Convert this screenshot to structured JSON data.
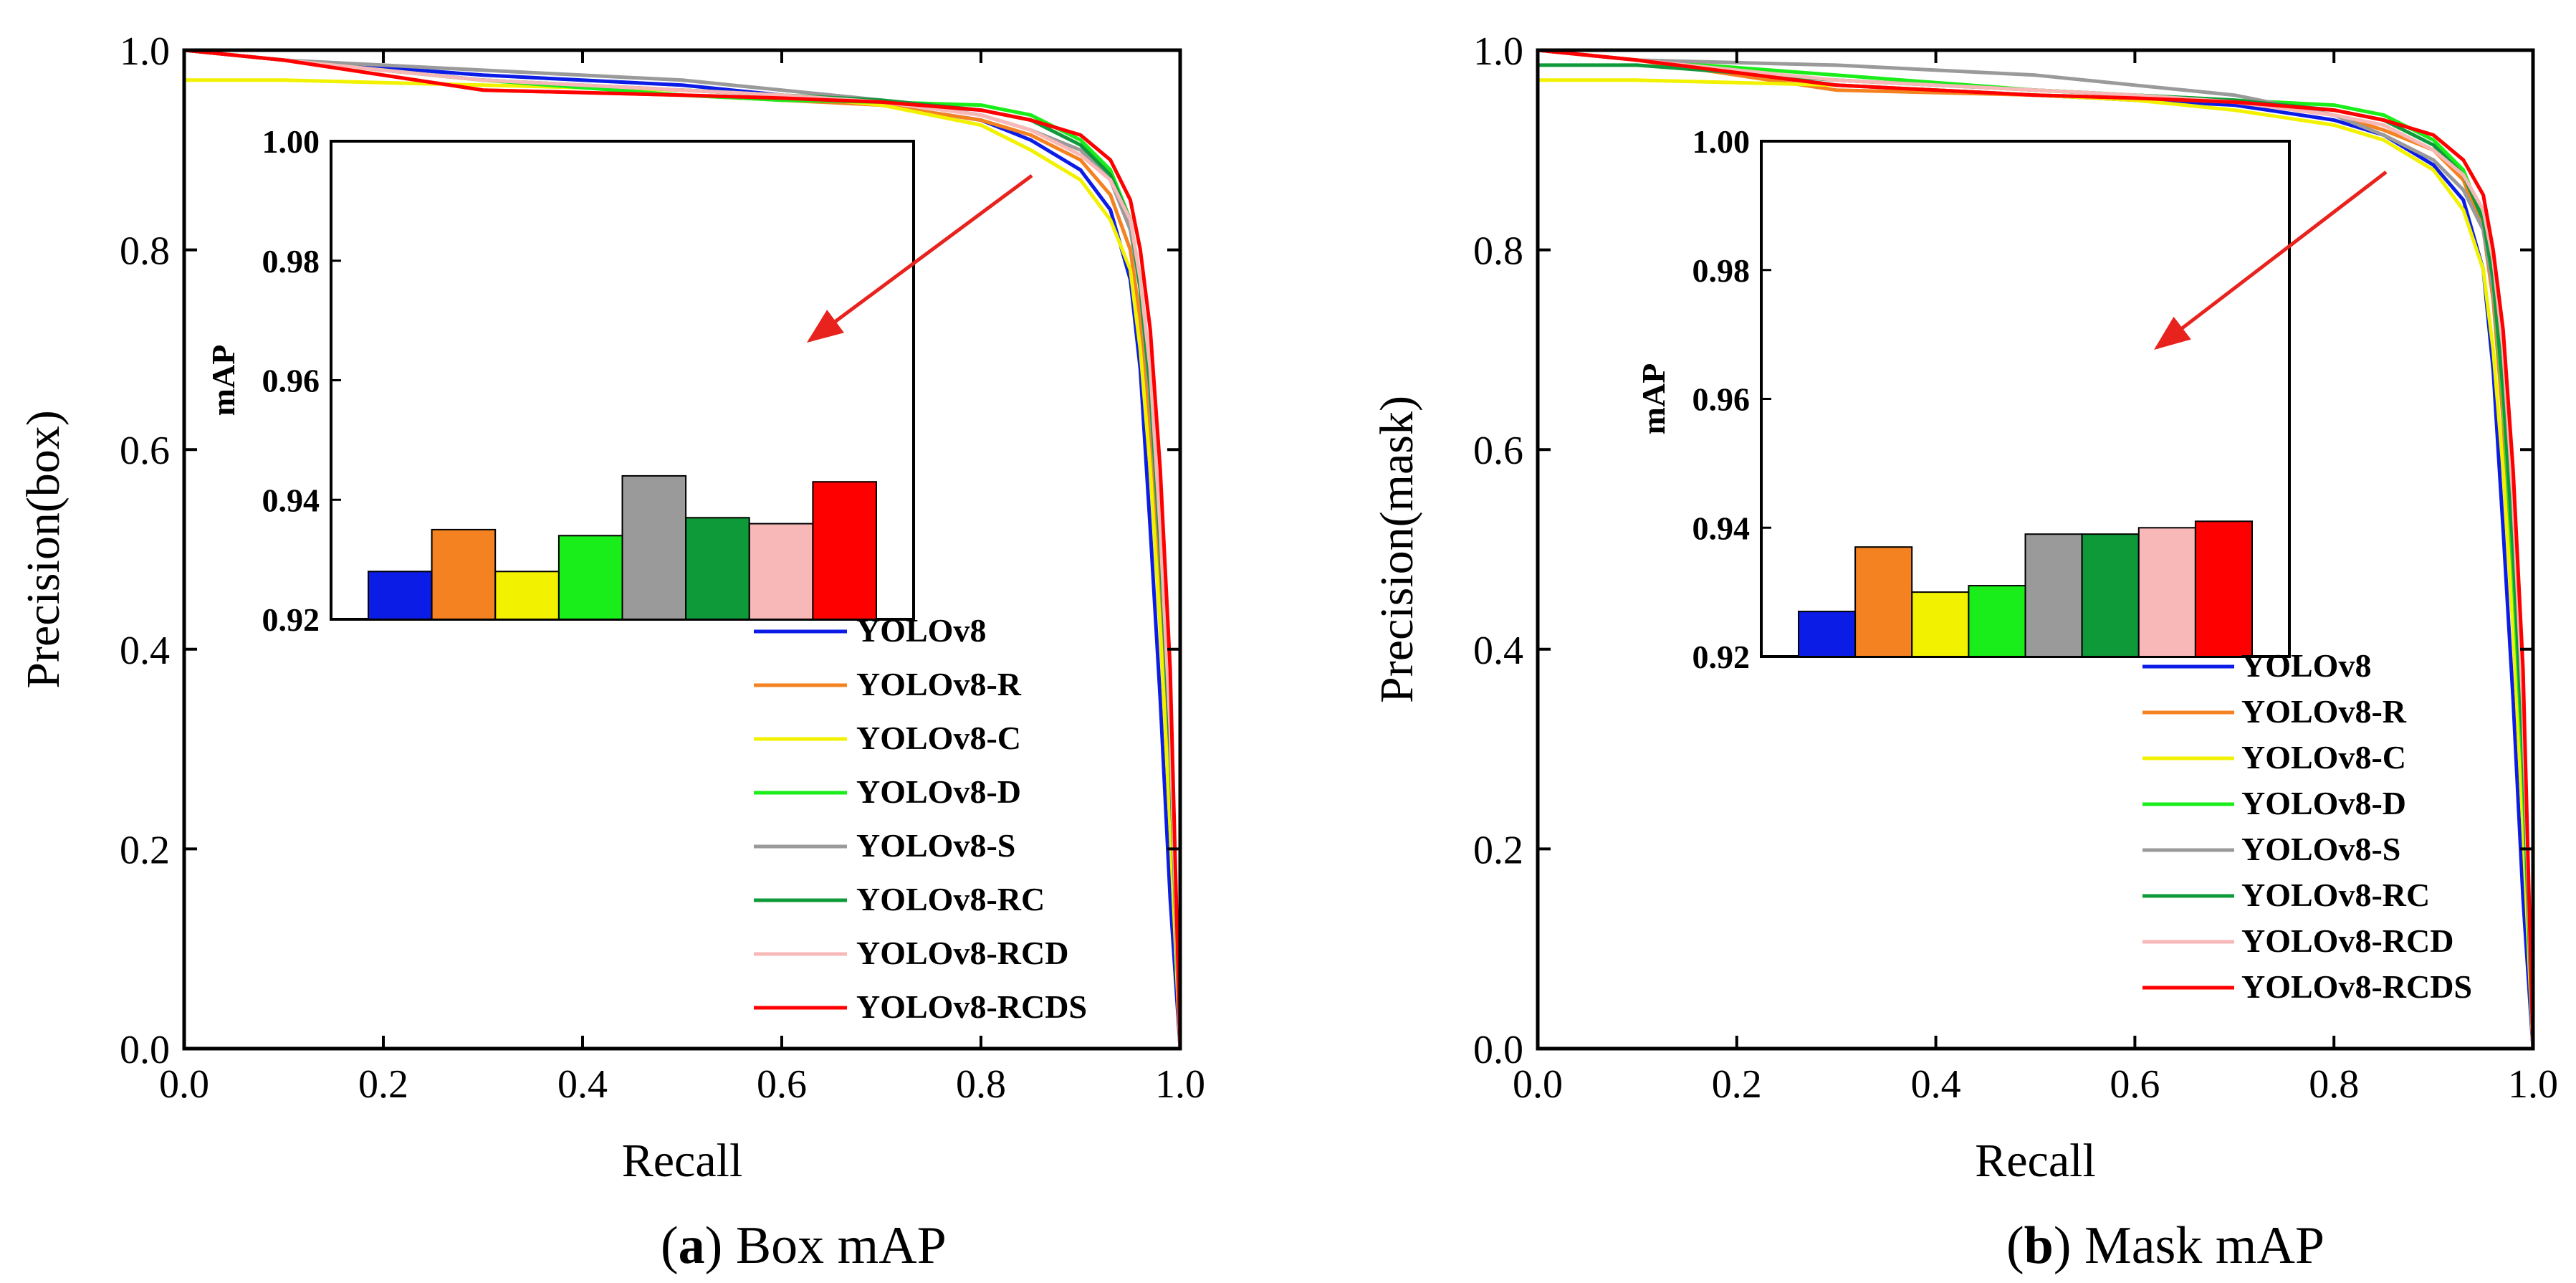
{
  "colors": {
    "YOLOv8": "#0b1ce6",
    "YOLOv8-R": "#f58220",
    "YOLOv8-C": "#f2f200",
    "YOLOv8-D": "#1aee1a",
    "YOLOv8-S": "#9a9a9a",
    "YOLOv8-RC": "#0f9a3a",
    "YOLOv8-RCD": "#f8b8b8",
    "YOLOv8-RCDS": "#ff0000",
    "arrow": "#e8231e"
  },
  "chart_data": [
    {
      "type": "line",
      "id": "box",
      "caption_letter": "a",
      "caption_text": "Box mAP",
      "caption_open": "(",
      "caption_close": ")",
      "title": "",
      "xlabel": "Recall",
      "ylabel": "Precision(box)",
      "xlim": [
        0,
        1
      ],
      "ylim": [
        0,
        1
      ],
      "xticks": [
        "0.0",
        "0.2",
        "0.4",
        "0.6",
        "0.8",
        "1.0"
      ],
      "yticks": [
        "0.0",
        "0.2",
        "0.4",
        "0.6",
        "0.8",
        "1.0"
      ],
      "series": [
        {
          "name": "YOLOv8",
          "x": [
            0,
            0.1,
            0.3,
            0.5,
            0.6,
            0.7,
            0.8,
            0.85,
            0.9,
            0.93,
            0.95,
            0.96,
            0.97,
            0.98,
            0.99,
            1.0
          ],
          "y": [
            1.0,
            0.99,
            0.975,
            0.965,
            0.955,
            0.945,
            0.93,
            0.91,
            0.88,
            0.84,
            0.77,
            0.68,
            0.52,
            0.35,
            0.15,
            0.0
          ]
        },
        {
          "name": "YOLOv8-R",
          "x": [
            0,
            0.1,
            0.3,
            0.5,
            0.6,
            0.7,
            0.8,
            0.85,
            0.9,
            0.93,
            0.95,
            0.96,
            0.97,
            0.98,
            0.99,
            1.0
          ],
          "y": [
            1.0,
            0.99,
            0.96,
            0.955,
            0.95,
            0.945,
            0.93,
            0.915,
            0.89,
            0.855,
            0.8,
            0.73,
            0.62,
            0.45,
            0.25,
            0.0
          ]
        },
        {
          "name": "YOLOv8-C",
          "x": [
            0,
            0.1,
            0.3,
            0.5,
            0.6,
            0.7,
            0.8,
            0.85,
            0.9,
            0.93,
            0.95,
            0.96,
            0.97,
            0.98,
            0.99,
            1.0
          ],
          "y": [
            0.97,
            0.97,
            0.965,
            0.96,
            0.955,
            0.945,
            0.925,
            0.9,
            0.87,
            0.83,
            0.78,
            0.7,
            0.58,
            0.42,
            0.22,
            0.0
          ]
        },
        {
          "name": "YOLOv8-D",
          "x": [
            0,
            0.1,
            0.3,
            0.5,
            0.6,
            0.7,
            0.8,
            0.85,
            0.9,
            0.93,
            0.95,
            0.96,
            0.97,
            0.98,
            0.99,
            1.0
          ],
          "y": [
            1.0,
            0.99,
            0.97,
            0.955,
            0.95,
            0.948,
            0.945,
            0.935,
            0.91,
            0.88,
            0.83,
            0.77,
            0.66,
            0.5,
            0.3,
            0.0
          ]
        },
        {
          "name": "YOLOv8-S",
          "x": [
            0,
            0.1,
            0.3,
            0.5,
            0.6,
            0.7,
            0.8,
            0.85,
            0.9,
            0.93,
            0.95,
            0.96,
            0.97,
            0.98,
            0.99,
            1.0
          ],
          "y": [
            1.0,
            0.99,
            0.98,
            0.97,
            0.96,
            0.95,
            0.935,
            0.92,
            0.9,
            0.87,
            0.82,
            0.76,
            0.65,
            0.5,
            0.3,
            0.0
          ]
        },
        {
          "name": "YOLOv8-RC",
          "x": [
            0,
            0.1,
            0.3,
            0.5,
            0.6,
            0.7,
            0.8,
            0.85,
            0.9,
            0.93,
            0.95,
            0.96,
            0.97,
            0.98,
            0.99,
            1.0
          ],
          "y": [
            1.0,
            0.99,
            0.97,
            0.96,
            0.955,
            0.95,
            0.94,
            0.93,
            0.905,
            0.875,
            0.83,
            0.76,
            0.66,
            0.5,
            0.3,
            0.0
          ]
        },
        {
          "name": "YOLOv8-RCD",
          "x": [
            0,
            0.1,
            0.3,
            0.5,
            0.6,
            0.7,
            0.8,
            0.85,
            0.9,
            0.93,
            0.95,
            0.96,
            0.97,
            0.98,
            0.99,
            1.0
          ],
          "y": [
            1.0,
            0.99,
            0.97,
            0.96,
            0.955,
            0.948,
            0.935,
            0.92,
            0.895,
            0.87,
            0.83,
            0.77,
            0.68,
            0.52,
            0.32,
            0.0
          ]
        },
        {
          "name": "YOLOv8-RCDS",
          "x": [
            0,
            0.1,
            0.3,
            0.5,
            0.6,
            0.7,
            0.8,
            0.85,
            0.9,
            0.93,
            0.95,
            0.96,
            0.97,
            0.98,
            0.99,
            1.0
          ],
          "y": [
            1.0,
            0.99,
            0.96,
            0.955,
            0.952,
            0.948,
            0.94,
            0.93,
            0.915,
            0.89,
            0.85,
            0.8,
            0.72,
            0.58,
            0.38,
            0.0
          ]
        }
      ],
      "legend": [
        "YOLOv8",
        "YOLOv8-R",
        "YOLOv8-C",
        "YOLOv8-D",
        "YOLOv8-S",
        "YOLOv8-RC",
        "YOLOv8-RCD",
        "YOLOv8-RCDS"
      ],
      "legend_position": "bottom-right",
      "inset": {
        "type": "bar",
        "ylabel": "mAP",
        "ylim": [
          0.92,
          1.0
        ],
        "yticks": [
          "0.92",
          "0.94",
          "0.96",
          "0.98",
          "1.00"
        ],
        "categories": [
          "YOLOv8",
          "YOLOv8-R",
          "YOLOv8-C",
          "YOLOv8-D",
          "YOLOv8-S",
          "YOLOv8-RC",
          "YOLOv8-RCD",
          "YOLOv8-RCDS"
        ],
        "values": [
          0.928,
          0.935,
          0.928,
          0.934,
          0.944,
          0.937,
          0.936,
          0.943
        ]
      }
    },
    {
      "type": "line",
      "id": "mask",
      "caption_letter": "b",
      "caption_text": "Mask mAP",
      "caption_open": "(",
      "caption_close": ")",
      "title": "",
      "xlabel": "Recall",
      "ylabel": "Precision(mask)",
      "xlim": [
        0,
        1
      ],
      "ylim": [
        0,
        1
      ],
      "xticks": [
        "0.0",
        "0.2",
        "0.4",
        "0.6",
        "0.8",
        "1.0"
      ],
      "yticks": [
        "0.0",
        "0.2",
        "0.4",
        "0.6",
        "0.8",
        "1.0"
      ],
      "series": [
        {
          "name": "YOLOv8",
          "x": [
            0,
            0.1,
            0.3,
            0.5,
            0.6,
            0.7,
            0.8,
            0.85,
            0.9,
            0.93,
            0.95,
            0.96,
            0.97,
            0.98,
            0.99,
            1.0
          ],
          "y": [
            1.0,
            0.99,
            0.965,
            0.955,
            0.95,
            0.945,
            0.93,
            0.915,
            0.885,
            0.85,
            0.78,
            0.68,
            0.52,
            0.35,
            0.15,
            0.0
          ]
        },
        {
          "name": "YOLOv8-R",
          "x": [
            0,
            0.1,
            0.3,
            0.5,
            0.6,
            0.7,
            0.8,
            0.85,
            0.9,
            0.93,
            0.95,
            0.96,
            0.97,
            0.98,
            0.99,
            1.0
          ],
          "y": [
            1.0,
            0.99,
            0.96,
            0.955,
            0.952,
            0.948,
            0.935,
            0.92,
            0.9,
            0.87,
            0.82,
            0.75,
            0.63,
            0.46,
            0.26,
            0.0
          ]
        },
        {
          "name": "YOLOv8-C",
          "x": [
            0,
            0.1,
            0.3,
            0.5,
            0.6,
            0.7,
            0.8,
            0.85,
            0.9,
            0.93,
            0.95,
            0.96,
            0.97,
            0.98,
            0.99,
            1.0
          ],
          "y": [
            0.97,
            0.97,
            0.965,
            0.955,
            0.95,
            0.94,
            0.925,
            0.91,
            0.88,
            0.84,
            0.78,
            0.7,
            0.58,
            0.42,
            0.22,
            0.0
          ]
        },
        {
          "name": "YOLOv8-D",
          "x": [
            0,
            0.1,
            0.3,
            0.5,
            0.6,
            0.7,
            0.8,
            0.85,
            0.9,
            0.93,
            0.95,
            0.96,
            0.97,
            0.98,
            0.99,
            1.0
          ],
          "y": [
            1.0,
            0.99,
            0.975,
            0.96,
            0.955,
            0.95,
            0.945,
            0.935,
            0.91,
            0.88,
            0.83,
            0.76,
            0.65,
            0.48,
            0.28,
            0.0
          ]
        },
        {
          "name": "YOLOv8-S",
          "x": [
            0,
            0.1,
            0.3,
            0.5,
            0.6,
            0.7,
            0.8,
            0.85,
            0.9,
            0.93,
            0.95,
            0.96,
            0.97,
            0.98,
            0.99,
            1.0
          ],
          "y": [
            1.0,
            0.99,
            0.985,
            0.975,
            0.965,
            0.955,
            0.935,
            0.915,
            0.89,
            0.86,
            0.82,
            0.76,
            0.66,
            0.5,
            0.3,
            0.0
          ]
        },
        {
          "name": "YOLOv8-RC",
          "x": [
            0,
            0.1,
            0.3,
            0.5,
            0.6,
            0.7,
            0.8,
            0.85,
            0.9,
            0.93,
            0.95,
            0.96,
            0.97,
            0.98,
            0.99,
            1.0
          ],
          "y": [
            0.985,
            0.985,
            0.97,
            0.96,
            0.955,
            0.95,
            0.94,
            0.93,
            0.905,
            0.875,
            0.83,
            0.77,
            0.66,
            0.5,
            0.3,
            0.0
          ]
        },
        {
          "name": "YOLOv8-RCD",
          "x": [
            0,
            0.1,
            0.3,
            0.5,
            0.6,
            0.7,
            0.8,
            0.85,
            0.9,
            0.93,
            0.95,
            0.96,
            0.97,
            0.98,
            0.99,
            1.0
          ],
          "y": [
            1.0,
            0.99,
            0.97,
            0.96,
            0.955,
            0.948,
            0.935,
            0.925,
            0.9,
            0.875,
            0.84,
            0.79,
            0.7,
            0.55,
            0.34,
            0.0
          ]
        },
        {
          "name": "YOLOv8-RCDS",
          "x": [
            0,
            0.1,
            0.3,
            0.5,
            0.6,
            0.7,
            0.8,
            0.85,
            0.9,
            0.93,
            0.95,
            0.96,
            0.97,
            0.98,
            0.99,
            1.0
          ],
          "y": [
            1.0,
            0.99,
            0.965,
            0.955,
            0.952,
            0.948,
            0.94,
            0.93,
            0.915,
            0.89,
            0.855,
            0.8,
            0.72,
            0.58,
            0.38,
            0.0
          ]
        }
      ],
      "legend": [
        "YOLOv8",
        "YOLOv8-R",
        "YOLOv8-C",
        "YOLOv8-D",
        "YOLOv8-S",
        "YOLOv8-RC",
        "YOLOv8-RCD",
        "YOLOv8-RCDS"
      ],
      "legend_position": "bottom-right",
      "inset": {
        "type": "bar",
        "ylabel": "mAP",
        "ylim": [
          0.92,
          1.0
        ],
        "yticks": [
          "0.92",
          "0.94",
          "0.96",
          "0.98",
          "1.00"
        ],
        "categories": [
          "YOLOv8",
          "YOLOv8-R",
          "YOLOv8-C",
          "YOLOv8-D",
          "YOLOv8-S",
          "YOLOv8-RC",
          "YOLOv8-RCD",
          "YOLOv8-RCDS"
        ],
        "values": [
          0.927,
          0.937,
          0.93,
          0.931,
          0.939,
          0.939,
          0.94,
          0.941
        ]
      }
    }
  ]
}
